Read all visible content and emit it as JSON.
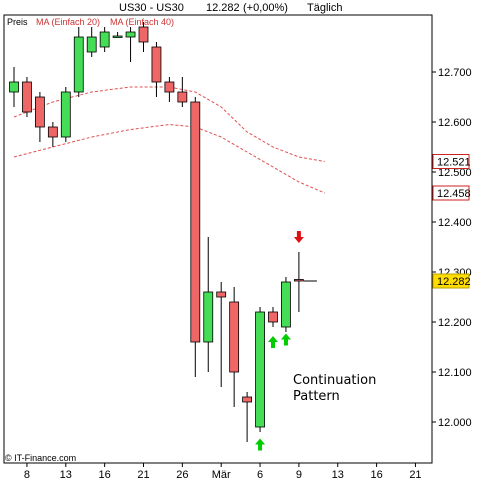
{
  "header": {
    "symbol": "US30 - US30",
    "price": "12.282",
    "change": "(+0,00%)",
    "period": "Täglich"
  },
  "legend": {
    "preis": "Preis",
    "ma20": "MA (Einfach 20)",
    "ma40": "MA (Einfach 40)"
  },
  "footer": {
    "copyright": "© IT-Finance.com"
  },
  "annotation": {
    "line1": "Continuation",
    "line2": "Pattern"
  },
  "colors": {
    "up": "#44dd55",
    "down": "#ee6666",
    "neutral": "#ee6666",
    "ma": "#e05050",
    "arrow_up": "#00cc00",
    "arrow_down": "#dd1111"
  },
  "chart_data": {
    "type": "candlestick",
    "ylim": [
      11940,
      12840
    ],
    "y_ticks": [
      "12.700",
      "12.600",
      "12.500",
      "12.400",
      "12.300",
      "12.200",
      "12.100",
      "12.000"
    ],
    "y_tick_values": [
      12700,
      12600,
      12500,
      12400,
      12300,
      12200,
      12100,
      12000
    ],
    "x_ticks": [
      "8",
      "13",
      "16",
      "21",
      "26",
      "Mär",
      "6",
      "9",
      "13",
      "16",
      "21"
    ],
    "x_tick_index": [
      1,
      4,
      7,
      10,
      13,
      16,
      19,
      22,
      25,
      28,
      31
    ],
    "price_labels": [
      {
        "text": "12.521",
        "value": 12521,
        "bg": "#ffffff",
        "fg": "#cc2222",
        "border": "#cc2222"
      },
      {
        "text": "12.458",
        "value": 12458,
        "bg": "#ffffff",
        "fg": "#cc2222",
        "border": "#cc2222"
      },
      {
        "text": "12.282",
        "value": 12282,
        "bg": "#ffdd00",
        "fg": "#000000",
        "border": "#b8a000"
      }
    ],
    "candles": [
      {
        "i": 0,
        "o": 12660,
        "h": 12710,
        "l": 12630,
        "c": 12680
      },
      {
        "i": 1,
        "o": 12680,
        "h": 12690,
        "l": 12610,
        "c": 12620
      },
      {
        "i": 2,
        "o": 12650,
        "h": 12660,
        "l": 12560,
        "c": 12590
      },
      {
        "i": 3,
        "o": 12590,
        "h": 12600,
        "l": 12550,
        "c": 12570
      },
      {
        "i": 4,
        "o": 12570,
        "h": 12670,
        "l": 12560,
        "c": 12660
      },
      {
        "i": 5,
        "o": 12660,
        "h": 12790,
        "l": 12650,
        "c": 12770
      },
      {
        "i": 6,
        "o": 12740,
        "h": 12790,
        "l": 12730,
        "c": 12770
      },
      {
        "i": 7,
        "o": 12750,
        "h": 12790,
        "l": 12740,
        "c": 12780
      },
      {
        "i": 8,
        "o": 12770,
        "h": 12780,
        "l": 12770,
        "c": 12772
      },
      {
        "i": 9,
        "o": 12770,
        "h": 12790,
        "l": 12720,
        "c": 12780
      },
      {
        "i": 10,
        "o": 12790,
        "h": 12800,
        "l": 12740,
        "c": 12760
      },
      {
        "i": 11,
        "o": 12750,
        "h": 12760,
        "l": 12650,
        "c": 12680
      },
      {
        "i": 12,
        "o": 12680,
        "h": 12690,
        "l": 12640,
        "c": 12660
      },
      {
        "i": 13,
        "o": 12660,
        "h": 12690,
        "l": 12630,
        "c": 12640
      },
      {
        "i": 14,
        "o": 12640,
        "h": 12650,
        "l": 12090,
        "c": 12160
      },
      {
        "i": 15,
        "o": 12160,
        "h": 12370,
        "l": 12100,
        "c": 12260
      },
      {
        "i": 16,
        "o": 12260,
        "h": 12280,
        "l": 12070,
        "c": 12250
      },
      {
        "i": 17,
        "o": 12240,
        "h": 12270,
        "l": 12030,
        "c": 12100
      },
      {
        "i": 18,
        "o": 12050,
        "h": 12060,
        "l": 11960,
        "c": 12040
      },
      {
        "i": 19,
        "o": 11990,
        "h": 12230,
        "l": 11980,
        "c": 12220
      },
      {
        "i": 20,
        "o": 12220,
        "h": 12230,
        "l": 12190,
        "c": 12200
      },
      {
        "i": 21,
        "o": 12190,
        "h": 12290,
        "l": 12180,
        "c": 12280
      },
      {
        "i": 22,
        "o": 12285,
        "h": 12340,
        "l": 12220,
        "c": 12282
      }
    ],
    "ma_lines": [
      {
        "name": "MA (Einfach 20)",
        "points": [
          [
            0,
            12610
          ],
          [
            3,
            12640
          ],
          [
            6,
            12660
          ],
          [
            9,
            12670
          ],
          [
            12,
            12670
          ],
          [
            14,
            12660
          ],
          [
            16,
            12630
          ],
          [
            18,
            12580
          ],
          [
            20,
            12550
          ],
          [
            22,
            12530
          ],
          [
            24,
            12521
          ]
        ]
      },
      {
        "name": "MA (Einfach 40)",
        "points": [
          [
            0,
            12530
          ],
          [
            3,
            12550
          ],
          [
            6,
            12570
          ],
          [
            9,
            12585
          ],
          [
            12,
            12595
          ],
          [
            14,
            12590
          ],
          [
            16,
            12570
          ],
          [
            18,
            12540
          ],
          [
            20,
            12510
          ],
          [
            22,
            12480
          ],
          [
            24,
            12458
          ]
        ]
      }
    ],
    "arrows": [
      {
        "i": 22,
        "dir": "down",
        "value": 12370
      },
      {
        "i": 19,
        "dir": "up",
        "value": 11955
      },
      {
        "i": 20,
        "dir": "up",
        "value": 12160
      },
      {
        "i": 21,
        "dir": "up",
        "value": 12165
      }
    ]
  }
}
